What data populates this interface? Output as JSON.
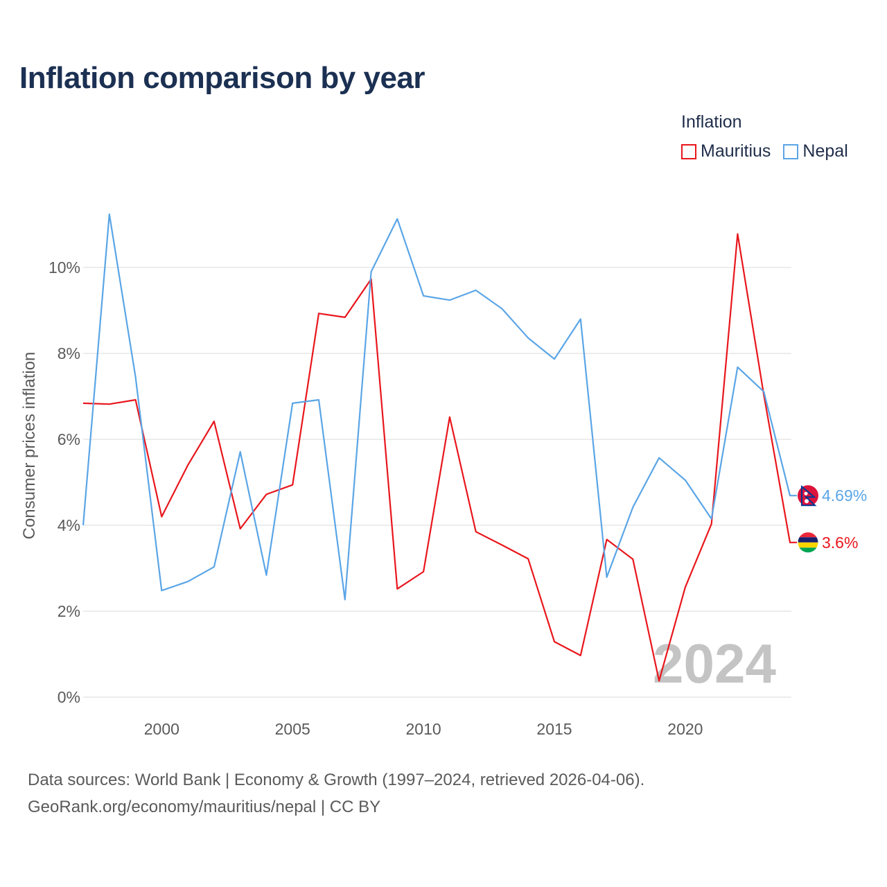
{
  "title": "Inflation comparison by year",
  "legend": {
    "title": "Inflation",
    "items": [
      {
        "name": "Mauritius",
        "color": "#e8161c"
      },
      {
        "name": "Nepal",
        "color": "#5aa5e6"
      }
    ]
  },
  "watermark_year": "2024",
  "source": {
    "line1": "Data sources: World Bank | Economy & Growth (1997–2024, retrieved 2026-04-06).",
    "line2": "GeoRank.org/economy/mauritius/nepal | CC BY"
  },
  "chart_data": {
    "type": "line",
    "title": "Inflation comparison by year",
    "xlabel": "",
    "ylabel": "Consumer prices inflation",
    "xlim": [
      1997,
      2024
    ],
    "ylim": [
      0,
      12
    ],
    "xticks": [
      2000,
      2005,
      2010,
      2015,
      2020
    ],
    "yticks": [
      0,
      2,
      4,
      6,
      8,
      10
    ],
    "ytick_labels": [
      "0%",
      "2%",
      "4%",
      "6%",
      "8%",
      "10%"
    ],
    "grid": true,
    "x": [
      1997,
      1998,
      1999,
      2000,
      2001,
      2002,
      2003,
      2004,
      2005,
      2006,
      2007,
      2008,
      2009,
      2010,
      2011,
      2012,
      2013,
      2014,
      2015,
      2016,
      2017,
      2018,
      2019,
      2020,
      2021,
      2022,
      2023,
      2024
    ],
    "series": [
      {
        "name": "Mauritius",
        "color": "#e8161c",
        "end_label": "3.6%",
        "flag": "mauritius-flag",
        "values": [
          6.84,
          6.82,
          6.92,
          4.2,
          5.4,
          6.42,
          3.92,
          4.72,
          4.94,
          8.93,
          8.84,
          9.73,
          2.52,
          2.92,
          6.52,
          3.85,
          3.54,
          3.22,
          1.29,
          0.97,
          3.67,
          3.21,
          0.38,
          2.56,
          4.03,
          10.78,
          7.04,
          3.6
        ]
      },
      {
        "name": "Nepal",
        "color": "#5aa5e6",
        "end_label": "4.69%",
        "flag": "nepal-flag",
        "values": [
          4.0,
          11.24,
          7.45,
          2.48,
          2.69,
          3.03,
          5.71,
          2.84,
          6.84,
          6.92,
          2.27,
          9.9,
          11.13,
          9.34,
          9.24,
          9.47,
          9.04,
          8.36,
          7.87,
          8.8,
          2.79,
          4.42,
          5.57,
          5.05,
          4.15,
          7.68,
          7.11,
          4.69
        ]
      }
    ]
  }
}
